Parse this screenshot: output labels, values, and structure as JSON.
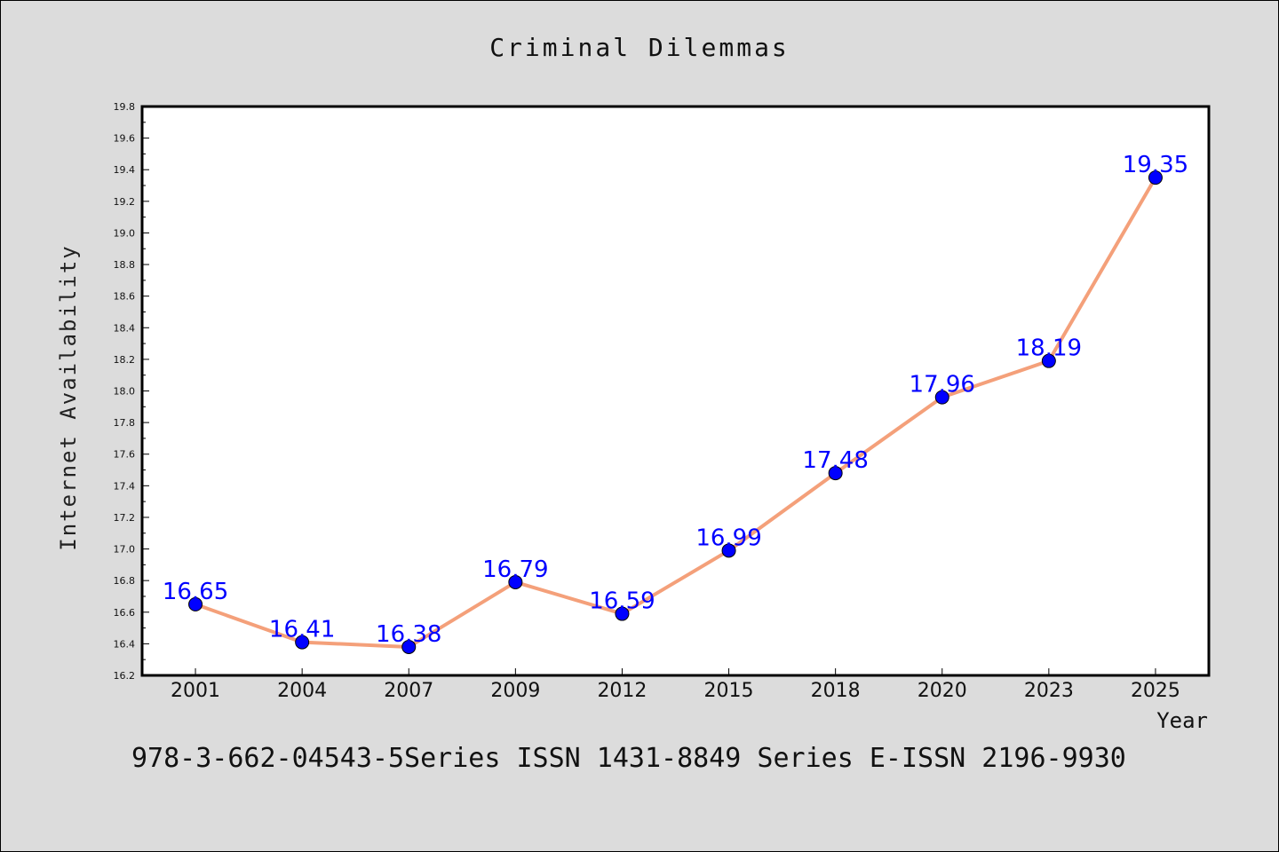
{
  "chart_data": {
    "type": "line",
    "title": "Criminal Dilemmas",
    "xlabel": "Year",
    "ylabel": "Internet Availability",
    "categories": [
      "2001",
      "2004",
      "2007",
      "2009",
      "2012",
      "2015",
      "2018",
      "2020",
      "2023",
      "2025"
    ],
    "series": [
      {
        "values": [
          16.65,
          16.41,
          16.38,
          16.79,
          16.59,
          16.99,
          17.48,
          17.96,
          18.19,
          19.35
        ],
        "line_color": "#f4a07a",
        "marker_color": "#0000ff"
      }
    ],
    "data_labels": [
      "16.65",
      "16.41",
      "16.38",
      "16.79",
      "16.59",
      "16.99",
      "17.48",
      "17.96",
      "18.19",
      "19.35"
    ],
    "ylim": [
      16.2,
      19.8
    ],
    "yticks": [
      "16.2",
      "16.4",
      "16.6",
      "16.8",
      "17.0",
      "17.2",
      "17.4",
      "17.6",
      "17.8",
      "18.0",
      "18.2",
      "18.4",
      "18.6",
      "18.8",
      "19.0",
      "19.2",
      "19.4",
      "19.6",
      "19.8"
    ],
    "grid": false,
    "legend": "none"
  },
  "footer": "978-3-662-04543-5Series ISSN 1431-8849 Series E-ISSN 2196-9930"
}
